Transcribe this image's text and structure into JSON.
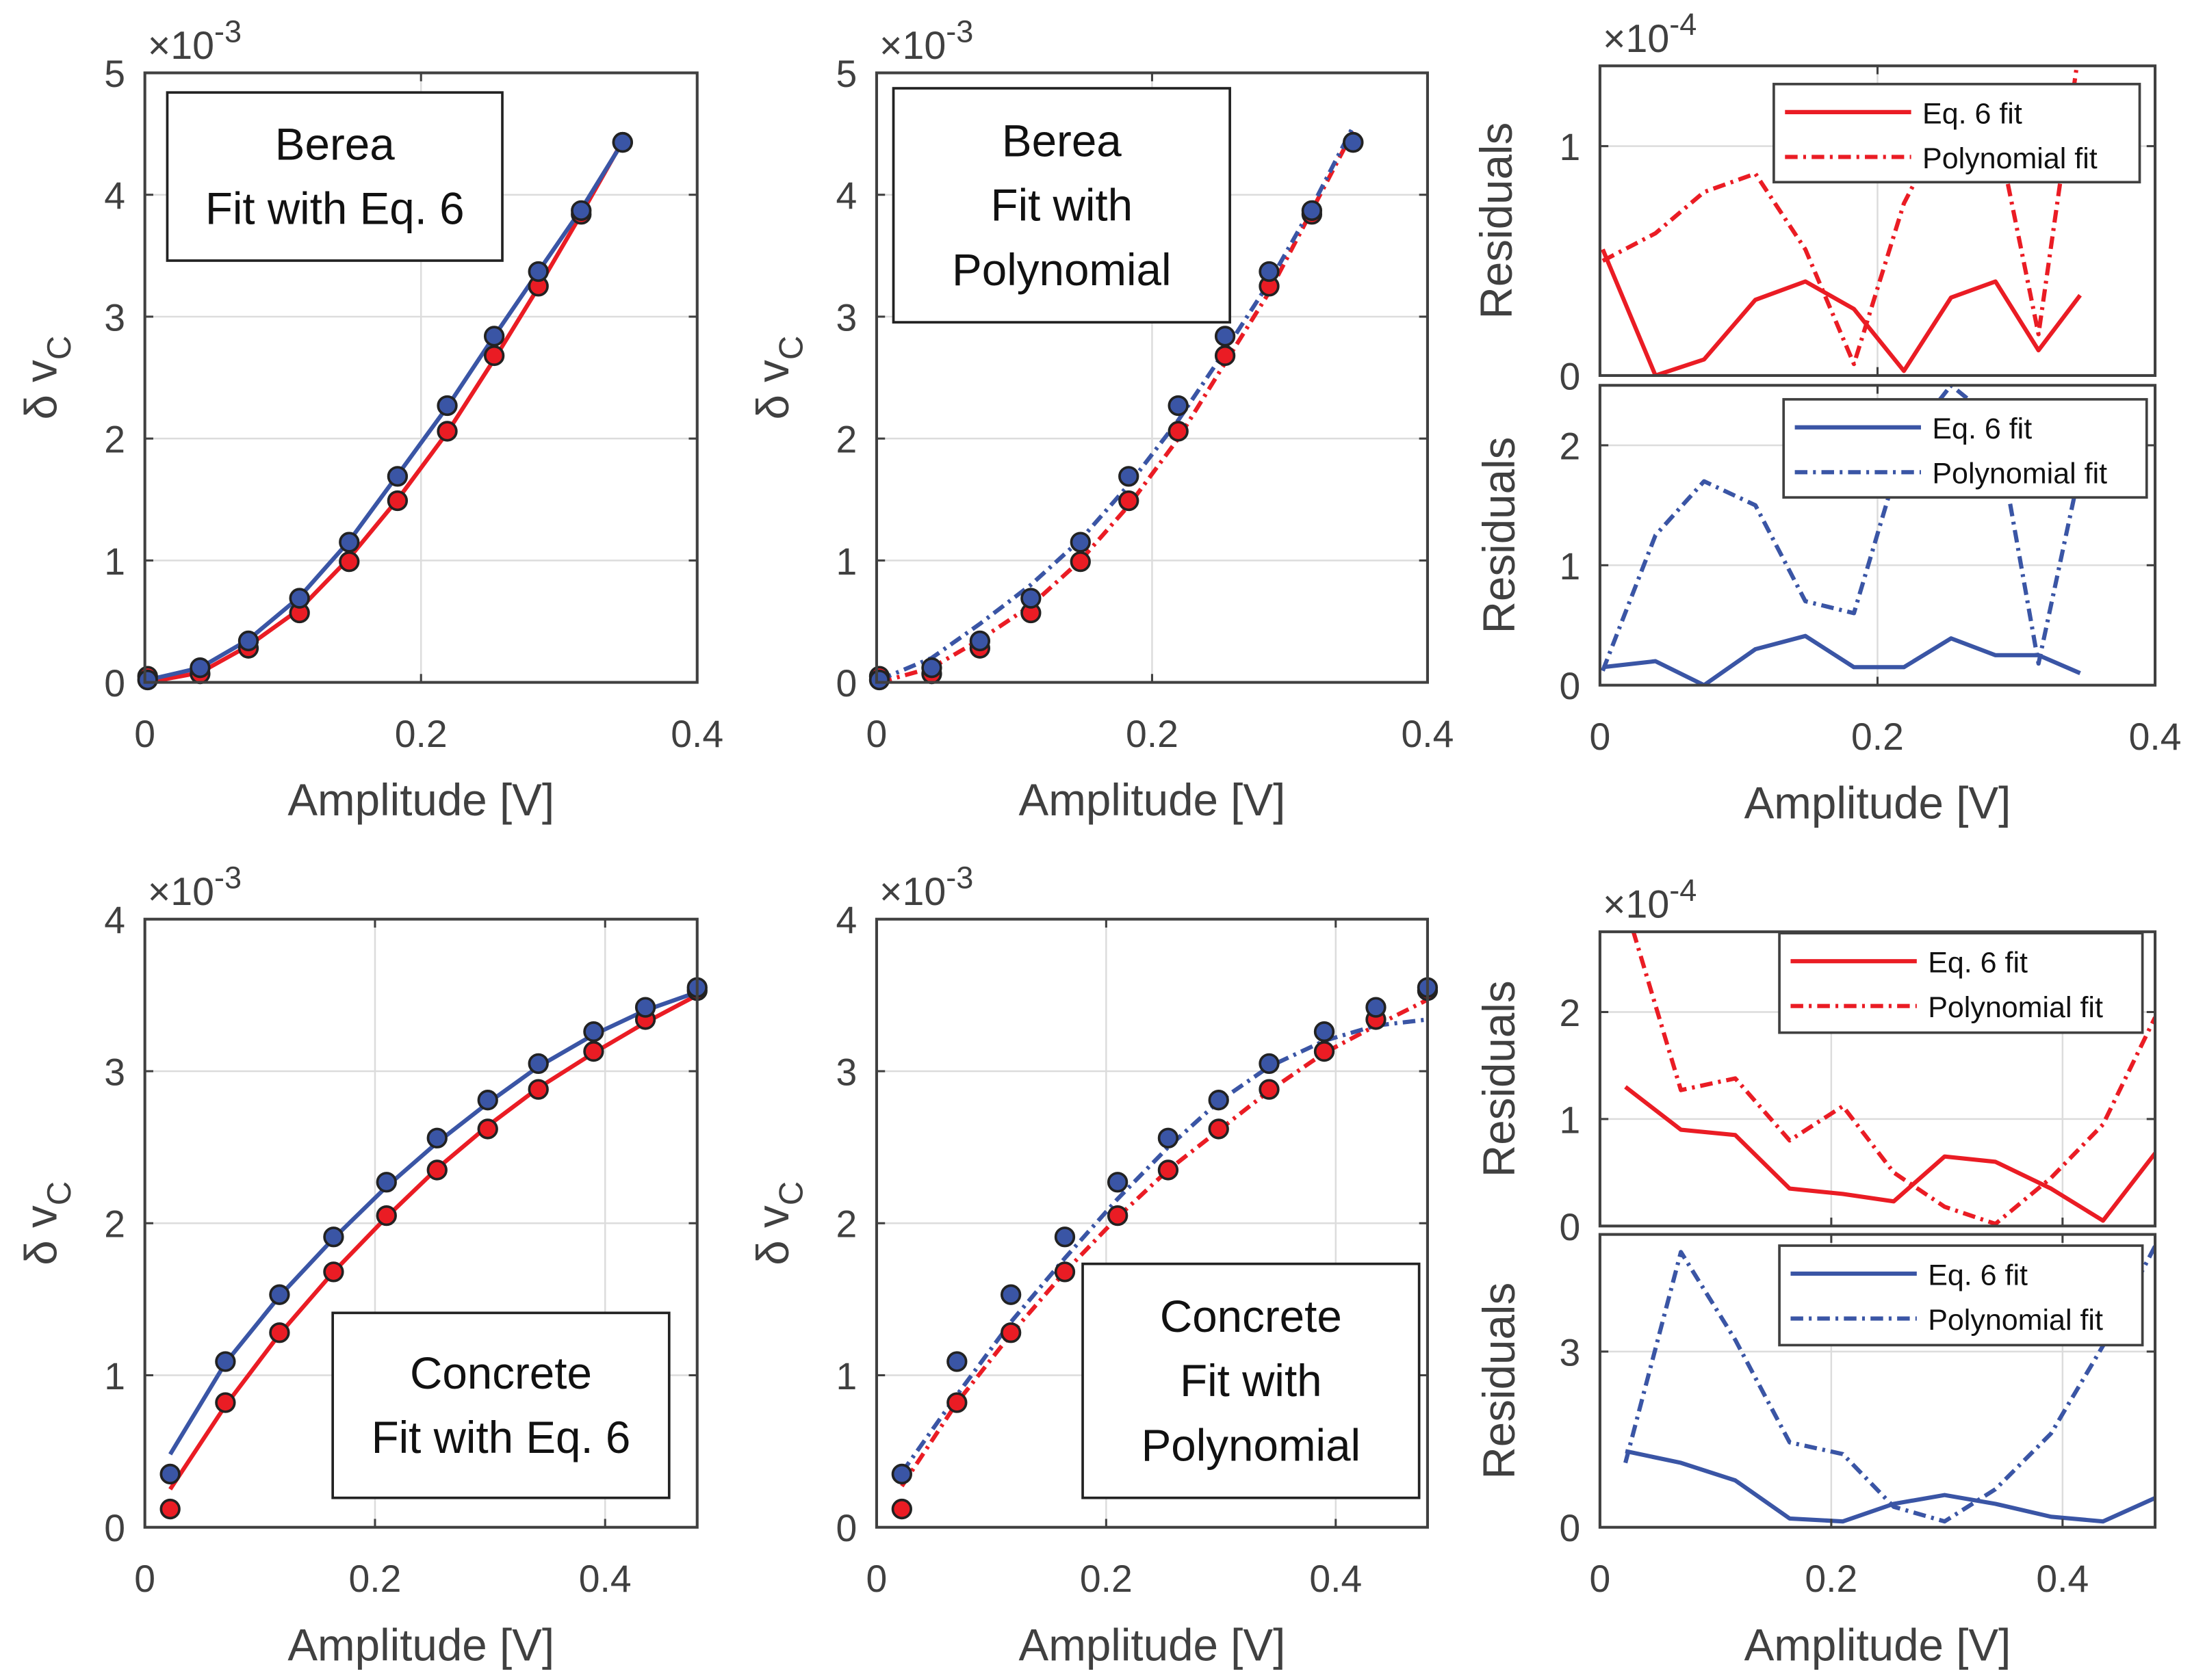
{
  "colors": {
    "red": "#ea1c24",
    "blue": "#3a55a5",
    "axis": "#404040",
    "grid": "#dcdcdc"
  },
  "chart_data": [
    {
      "id": "berea-eq6",
      "type": "line",
      "box_text": [
        "Berea",
        "Fit with Eq. 6"
      ],
      "xlabel": "Amplitude [V]",
      "ylabel": "δ v",
      "ylabel_sub": "C",
      "exponent": "×10",
      "exponent_power": "-3",
      "xlim": [
        0,
        0.4
      ],
      "ylim": [
        0,
        5
      ],
      "xticks": [
        0,
        0.2,
        0.4
      ],
      "xtick_labels": [
        "0",
        "0.2",
        "0.4"
      ],
      "yticks": [
        0,
        1,
        2,
        3,
        4,
        5
      ],
      "ytick_labels": [
        "0",
        "1",
        "2",
        "3",
        "4",
        "5"
      ],
      "series": [
        {
          "name": "Eq. 6 fit (red)",
          "color": "red",
          "style": "solid",
          "x": [
            0.002,
            0.04,
            0.075,
            0.112,
            0.148,
            0.183,
            0.219,
            0.253,
            0.285,
            0.316,
            0.346
          ],
          "y": [
            0.0,
            0.08,
            0.3,
            0.6,
            1.02,
            1.5,
            2.05,
            2.65,
            3.24,
            3.84,
            4.44
          ]
        },
        {
          "name": "Eq. 6 fit (blue)",
          "color": "blue",
          "style": "solid",
          "x": [
            0.002,
            0.04,
            0.075,
            0.112,
            0.148,
            0.183,
            0.219,
            0.253,
            0.285,
            0.316,
            0.346
          ],
          "y": [
            0.02,
            0.12,
            0.35,
            0.7,
            1.16,
            1.7,
            2.26,
            2.84,
            3.37,
            3.88,
            4.43
          ]
        },
        {
          "name": "Data (red)",
          "color": "red",
          "style": "marker",
          "x": [
            0.002,
            0.04,
            0.075,
            0.112,
            0.148,
            0.183,
            0.219,
            0.253,
            0.285,
            0.316,
            0.346
          ],
          "y": [
            0.05,
            0.07,
            0.28,
            0.57,
            0.99,
            1.49,
            2.06,
            2.68,
            3.25,
            3.84,
            4.43
          ]
        },
        {
          "name": "Data (blue)",
          "color": "blue",
          "style": "marker",
          "x": [
            0.002,
            0.04,
            0.075,
            0.112,
            0.148,
            0.183,
            0.219,
            0.253,
            0.285,
            0.316,
            0.346
          ],
          "y": [
            0.02,
            0.12,
            0.34,
            0.69,
            1.15,
            1.69,
            2.27,
            2.84,
            3.37,
            3.87,
            4.43
          ]
        }
      ]
    },
    {
      "id": "berea-poly",
      "type": "line",
      "box_text": [
        "Berea",
        "Fit with",
        "Polynomial"
      ],
      "xlabel": "Amplitude [V]",
      "ylabel": "δ v",
      "ylabel_sub": "C",
      "exponent": "×10",
      "exponent_power": "-3",
      "xlim": [
        0,
        0.4
      ],
      "ylim": [
        0,
        5
      ],
      "xticks": [
        0,
        0.2,
        0.4
      ],
      "xtick_labels": [
        "0",
        "0.2",
        "0.4"
      ],
      "yticks": [
        0,
        1,
        2,
        3,
        4,
        5
      ],
      "ytick_labels": [
        "0",
        "1",
        "2",
        "3",
        "4",
        "5"
      ],
      "series": [
        {
          "name": "Polynomial fit (red)",
          "color": "red",
          "style": "dashdot",
          "x": [
            0.002,
            0.04,
            0.075,
            0.112,
            0.148,
            0.183,
            0.219,
            0.253,
            0.285,
            0.316,
            0.346
          ],
          "y": [
            0.0,
            0.12,
            0.35,
            0.63,
            1.0,
            1.45,
            2.0,
            2.62,
            3.2,
            3.87,
            4.52
          ]
        },
        {
          "name": "Polynomial fit (blue)",
          "color": "blue",
          "style": "dashdot",
          "x": [
            0.002,
            0.04,
            0.075,
            0.112,
            0.148,
            0.183,
            0.219,
            0.253,
            0.285,
            0.316,
            0.346
          ],
          "y": [
            0.02,
            0.2,
            0.48,
            0.8,
            1.17,
            1.62,
            2.15,
            2.72,
            3.28,
            3.9,
            4.56
          ]
        },
        {
          "name": "Data (red)",
          "color": "red",
          "style": "marker",
          "x": [
            0.002,
            0.04,
            0.075,
            0.112,
            0.148,
            0.183,
            0.219,
            0.253,
            0.285,
            0.316,
            0.346
          ],
          "y": [
            0.05,
            0.07,
            0.28,
            0.57,
            0.99,
            1.49,
            2.06,
            2.68,
            3.25,
            3.84,
            4.43
          ]
        },
        {
          "name": "Data (blue)",
          "color": "blue",
          "style": "marker",
          "x": [
            0.002,
            0.04,
            0.075,
            0.112,
            0.148,
            0.183,
            0.219,
            0.253,
            0.285,
            0.316,
            0.346
          ],
          "y": [
            0.02,
            0.12,
            0.34,
            0.69,
            1.15,
            1.69,
            2.27,
            2.84,
            3.37,
            3.87,
            4.43
          ]
        }
      ]
    },
    {
      "id": "berea-res-red",
      "type": "line",
      "ylabel": "Residuals",
      "exponent": "×10",
      "exponent_power": "-4",
      "xlim": [
        0,
        0.4
      ],
      "ylim": [
        0,
        1.35
      ],
      "xticks": [
        0,
        0.2,
        0.4
      ],
      "xtick_labels": [],
      "yticks": [
        0,
        1
      ],
      "ytick_labels": [
        "0",
        "1"
      ],
      "legend": [
        "Eq. 6 fit",
        "Polynomial fit"
      ],
      "series": [
        {
          "name": "Eq. 6 fit",
          "color": "red",
          "style": "solid",
          "x": [
            0.002,
            0.04,
            0.075,
            0.112,
            0.148,
            0.183,
            0.219,
            0.253,
            0.285,
            0.316,
            0.346
          ],
          "y": [
            0.55,
            0.0,
            0.07,
            0.33,
            0.41,
            0.29,
            0.02,
            0.34,
            0.41,
            0.11,
            0.35
          ]
        },
        {
          "name": "Polynomial fit",
          "color": "red",
          "style": "dashdot",
          "x": [
            0.002,
            0.04,
            0.075,
            0.112,
            0.148,
            0.183,
            0.219,
            0.253,
            0.285,
            0.316,
            0.346
          ],
          "y": [
            0.5,
            0.62,
            0.8,
            0.88,
            0.55,
            0.05,
            0.75,
            1.15,
            1.1,
            0.18,
            1.45
          ]
        }
      ]
    },
    {
      "id": "berea-res-blue",
      "type": "line",
      "xlabel": "Amplitude [V]",
      "ylabel": "Residuals",
      "xlim": [
        0,
        0.4
      ],
      "ylim": [
        0,
        2.5
      ],
      "xticks": [
        0,
        0.2,
        0.4
      ],
      "xtick_labels": [
        "0",
        "0.2",
        "0.4"
      ],
      "yticks": [
        0,
        1,
        2
      ],
      "ytick_labels": [
        "0",
        "1",
        "2"
      ],
      "legend": [
        "Eq. 6 fit",
        "Polynomial fit"
      ],
      "series": [
        {
          "name": "Eq. 6 fit",
          "color": "blue",
          "style": "solid",
          "x": [
            0.002,
            0.04,
            0.075,
            0.112,
            0.148,
            0.183,
            0.219,
            0.253,
            0.285,
            0.316,
            0.346
          ],
          "y": [
            0.15,
            0.2,
            0.0,
            0.3,
            0.41,
            0.15,
            0.15,
            0.39,
            0.25,
            0.25,
            0.1
          ]
        },
        {
          "name": "Polynomial fit",
          "color": "blue",
          "style": "dashdot",
          "x": [
            0.002,
            0.04,
            0.075,
            0.112,
            0.148,
            0.183,
            0.219,
            0.253,
            0.285,
            0.316,
            0.346
          ],
          "y": [
            0.12,
            1.25,
            1.7,
            1.5,
            0.7,
            0.6,
            2.0,
            2.5,
            2.2,
            0.18,
            1.8
          ]
        }
      ]
    },
    {
      "id": "concrete-eq6",
      "type": "line",
      "box_text": [
        "Concrete",
        "Fit with Eq. 6"
      ],
      "xlabel": "Amplitude [V]",
      "ylabel": "δ v",
      "ylabel_sub": "C",
      "exponent": "×10",
      "exponent_power": "-3",
      "xlim": [
        0,
        0.48
      ],
      "ylim": [
        0,
        4
      ],
      "xticks": [
        0,
        0.2,
        0.4
      ],
      "xtick_labels": [
        "0",
        "0.2",
        "0.4"
      ],
      "yticks": [
        0,
        1,
        2,
        3,
        4
      ],
      "ytick_labels": [
        "0",
        "1",
        "2",
        "3",
        "4"
      ],
      "series": [
        {
          "name": "Eq. 6 fit (red)",
          "color": "red",
          "style": "solid",
          "x": [
            0.022,
            0.07,
            0.117,
            0.164,
            0.21,
            0.254,
            0.298,
            0.342,
            0.39,
            0.435,
            0.48
          ],
          "y": [
            0.25,
            0.8,
            1.27,
            1.68,
            2.04,
            2.36,
            2.64,
            2.89,
            3.12,
            3.32,
            3.5
          ]
        },
        {
          "name": "Eq. 6 fit (blue)",
          "color": "blue",
          "style": "solid",
          "x": [
            0.022,
            0.07,
            0.117,
            0.164,
            0.21,
            0.254,
            0.298,
            0.342,
            0.39,
            0.435,
            0.48
          ],
          "y": [
            0.48,
            1.08,
            1.52,
            1.9,
            2.24,
            2.53,
            2.79,
            3.03,
            3.24,
            3.4,
            3.52
          ]
        },
        {
          "name": "Data (red)",
          "color": "red",
          "style": "marker",
          "x": [
            0.022,
            0.07,
            0.117,
            0.164,
            0.21,
            0.254,
            0.298,
            0.342,
            0.39,
            0.435,
            0.48
          ],
          "y": [
            0.12,
            0.82,
            1.28,
            1.68,
            2.05,
            2.35,
            2.62,
            2.88,
            3.13,
            3.34,
            3.53
          ]
        },
        {
          "name": "Data (blue)",
          "color": "blue",
          "style": "marker",
          "x": [
            0.022,
            0.07,
            0.117,
            0.164,
            0.21,
            0.254,
            0.298,
            0.342,
            0.39,
            0.435,
            0.48
          ],
          "y": [
            0.35,
            1.09,
            1.53,
            1.91,
            2.27,
            2.56,
            2.81,
            3.05,
            3.26,
            3.42,
            3.55
          ]
        }
      ]
    },
    {
      "id": "concrete-poly",
      "type": "line",
      "box_text": [
        "Concrete",
        "Fit with",
        "Polynomial"
      ],
      "xlabel": "Amplitude [V]",
      "ylabel": "δ v",
      "ylabel_sub": "C",
      "exponent": "×10",
      "exponent_power": "-3",
      "xlim": [
        0,
        0.48
      ],
      "ylim": [
        0,
        4
      ],
      "xticks": [
        0,
        0.2,
        0.4
      ],
      "xtick_labels": [
        "0",
        "0.2",
        "0.4"
      ],
      "yticks": [
        0,
        1,
        2,
        3,
        4
      ],
      "ytick_labels": [
        "0",
        "1",
        "2",
        "3",
        "4"
      ],
      "series": [
        {
          "name": "Polynomial fit (red)",
          "color": "red",
          "style": "dashdot",
          "x": [
            0.022,
            0.07,
            0.117,
            0.164,
            0.21,
            0.254,
            0.298,
            0.342,
            0.39,
            0.435,
            0.48
          ],
          "y": [
            0.27,
            0.82,
            1.27,
            1.68,
            2.04,
            2.35,
            2.61,
            2.87,
            3.12,
            3.3,
            3.47
          ]
        },
        {
          "name": "Polynomial fit (blue)",
          "color": "blue",
          "style": "dashdot",
          "x": [
            0.022,
            0.07,
            0.117,
            0.164,
            0.21,
            0.254,
            0.298,
            0.342,
            0.39,
            0.435,
            0.48
          ],
          "y": [
            0.36,
            0.87,
            1.35,
            1.77,
            2.16,
            2.5,
            2.8,
            3.03,
            3.2,
            3.3,
            3.34
          ]
        },
        {
          "name": "Data (red)",
          "color": "red",
          "style": "marker",
          "x": [
            0.022,
            0.07,
            0.117,
            0.164,
            0.21,
            0.254,
            0.298,
            0.342,
            0.39,
            0.435,
            0.48
          ],
          "y": [
            0.12,
            0.82,
            1.28,
            1.68,
            2.05,
            2.35,
            2.62,
            2.88,
            3.13,
            3.34,
            3.53
          ]
        },
        {
          "name": "Data (blue)",
          "color": "blue",
          "style": "marker",
          "x": [
            0.022,
            0.07,
            0.117,
            0.164,
            0.21,
            0.254,
            0.298,
            0.342,
            0.39,
            0.435,
            0.48
          ],
          "y": [
            0.35,
            1.09,
            1.53,
            1.91,
            2.27,
            2.56,
            2.81,
            3.05,
            3.26,
            3.42,
            3.55
          ]
        }
      ]
    },
    {
      "id": "concrete-res-red",
      "type": "line",
      "ylabel": "Residuals",
      "exponent": "×10",
      "exponent_power": "-4",
      "xlim": [
        0,
        0.48
      ],
      "ylim": [
        0,
        2.75
      ],
      "xticks": [
        0,
        0.2,
        0.4
      ],
      "xtick_labels": [],
      "yticks": [
        0,
        1,
        2
      ],
      "ytick_labels": [
        "0",
        "1",
        "2"
      ],
      "legend": [
        "Eq. 6 fit",
        "Polynomial fit"
      ],
      "series": [
        {
          "name": "Eq. 6 fit",
          "color": "red",
          "style": "solid",
          "x": [
            0.022,
            0.07,
            0.117,
            0.164,
            0.21,
            0.254,
            0.298,
            0.342,
            0.39,
            0.435,
            0.48
          ],
          "y": [
            1.3,
            0.9,
            0.85,
            0.35,
            0.3,
            0.23,
            0.65,
            0.6,
            0.35,
            0.05,
            0.68
          ]
        },
        {
          "name": "Polynomial fit",
          "color": "red",
          "style": "dashdot",
          "x": [
            0.022,
            0.07,
            0.117,
            0.164,
            0.21,
            0.254,
            0.298,
            0.342,
            0.39,
            0.435,
            0.48
          ],
          "y": [
            3.0,
            1.27,
            1.38,
            0.8,
            1.12,
            0.5,
            0.18,
            0.02,
            0.45,
            0.95,
            1.95
          ]
        }
      ]
    },
    {
      "id": "concrete-res-blue",
      "type": "line",
      "xlabel": "Amplitude [V]",
      "ylabel": "Residuals",
      "xlim": [
        0,
        0.48
      ],
      "ylim": [
        0,
        5
      ],
      "xticks": [
        0,
        0.2,
        0.4
      ],
      "xtick_labels": [
        "0",
        "0.2",
        "0.4"
      ],
      "yticks": [
        0,
        3
      ],
      "ytick_labels": [
        "0",
        "3"
      ],
      "legend": [
        "Eq. 6 fit",
        "Polynomial fit"
      ],
      "series": [
        {
          "name": "Eq. 6 fit",
          "color": "blue",
          "style": "solid",
          "x": [
            0.022,
            0.07,
            0.117,
            0.164,
            0.21,
            0.254,
            0.298,
            0.342,
            0.39,
            0.435,
            0.48
          ],
          "y": [
            1.3,
            1.1,
            0.8,
            0.15,
            0.1,
            0.4,
            0.55,
            0.4,
            0.18,
            0.1,
            0.5
          ]
        },
        {
          "name": "Polynomial fit",
          "color": "blue",
          "style": "dashdot",
          "x": [
            0.022,
            0.07,
            0.117,
            0.164,
            0.21,
            0.254,
            0.298,
            0.342,
            0.39,
            0.435,
            0.48
          ],
          "y": [
            1.1,
            4.7,
            3.2,
            1.45,
            1.25,
            0.35,
            0.1,
            0.65,
            1.6,
            3.1,
            4.8
          ]
        }
      ]
    }
  ]
}
